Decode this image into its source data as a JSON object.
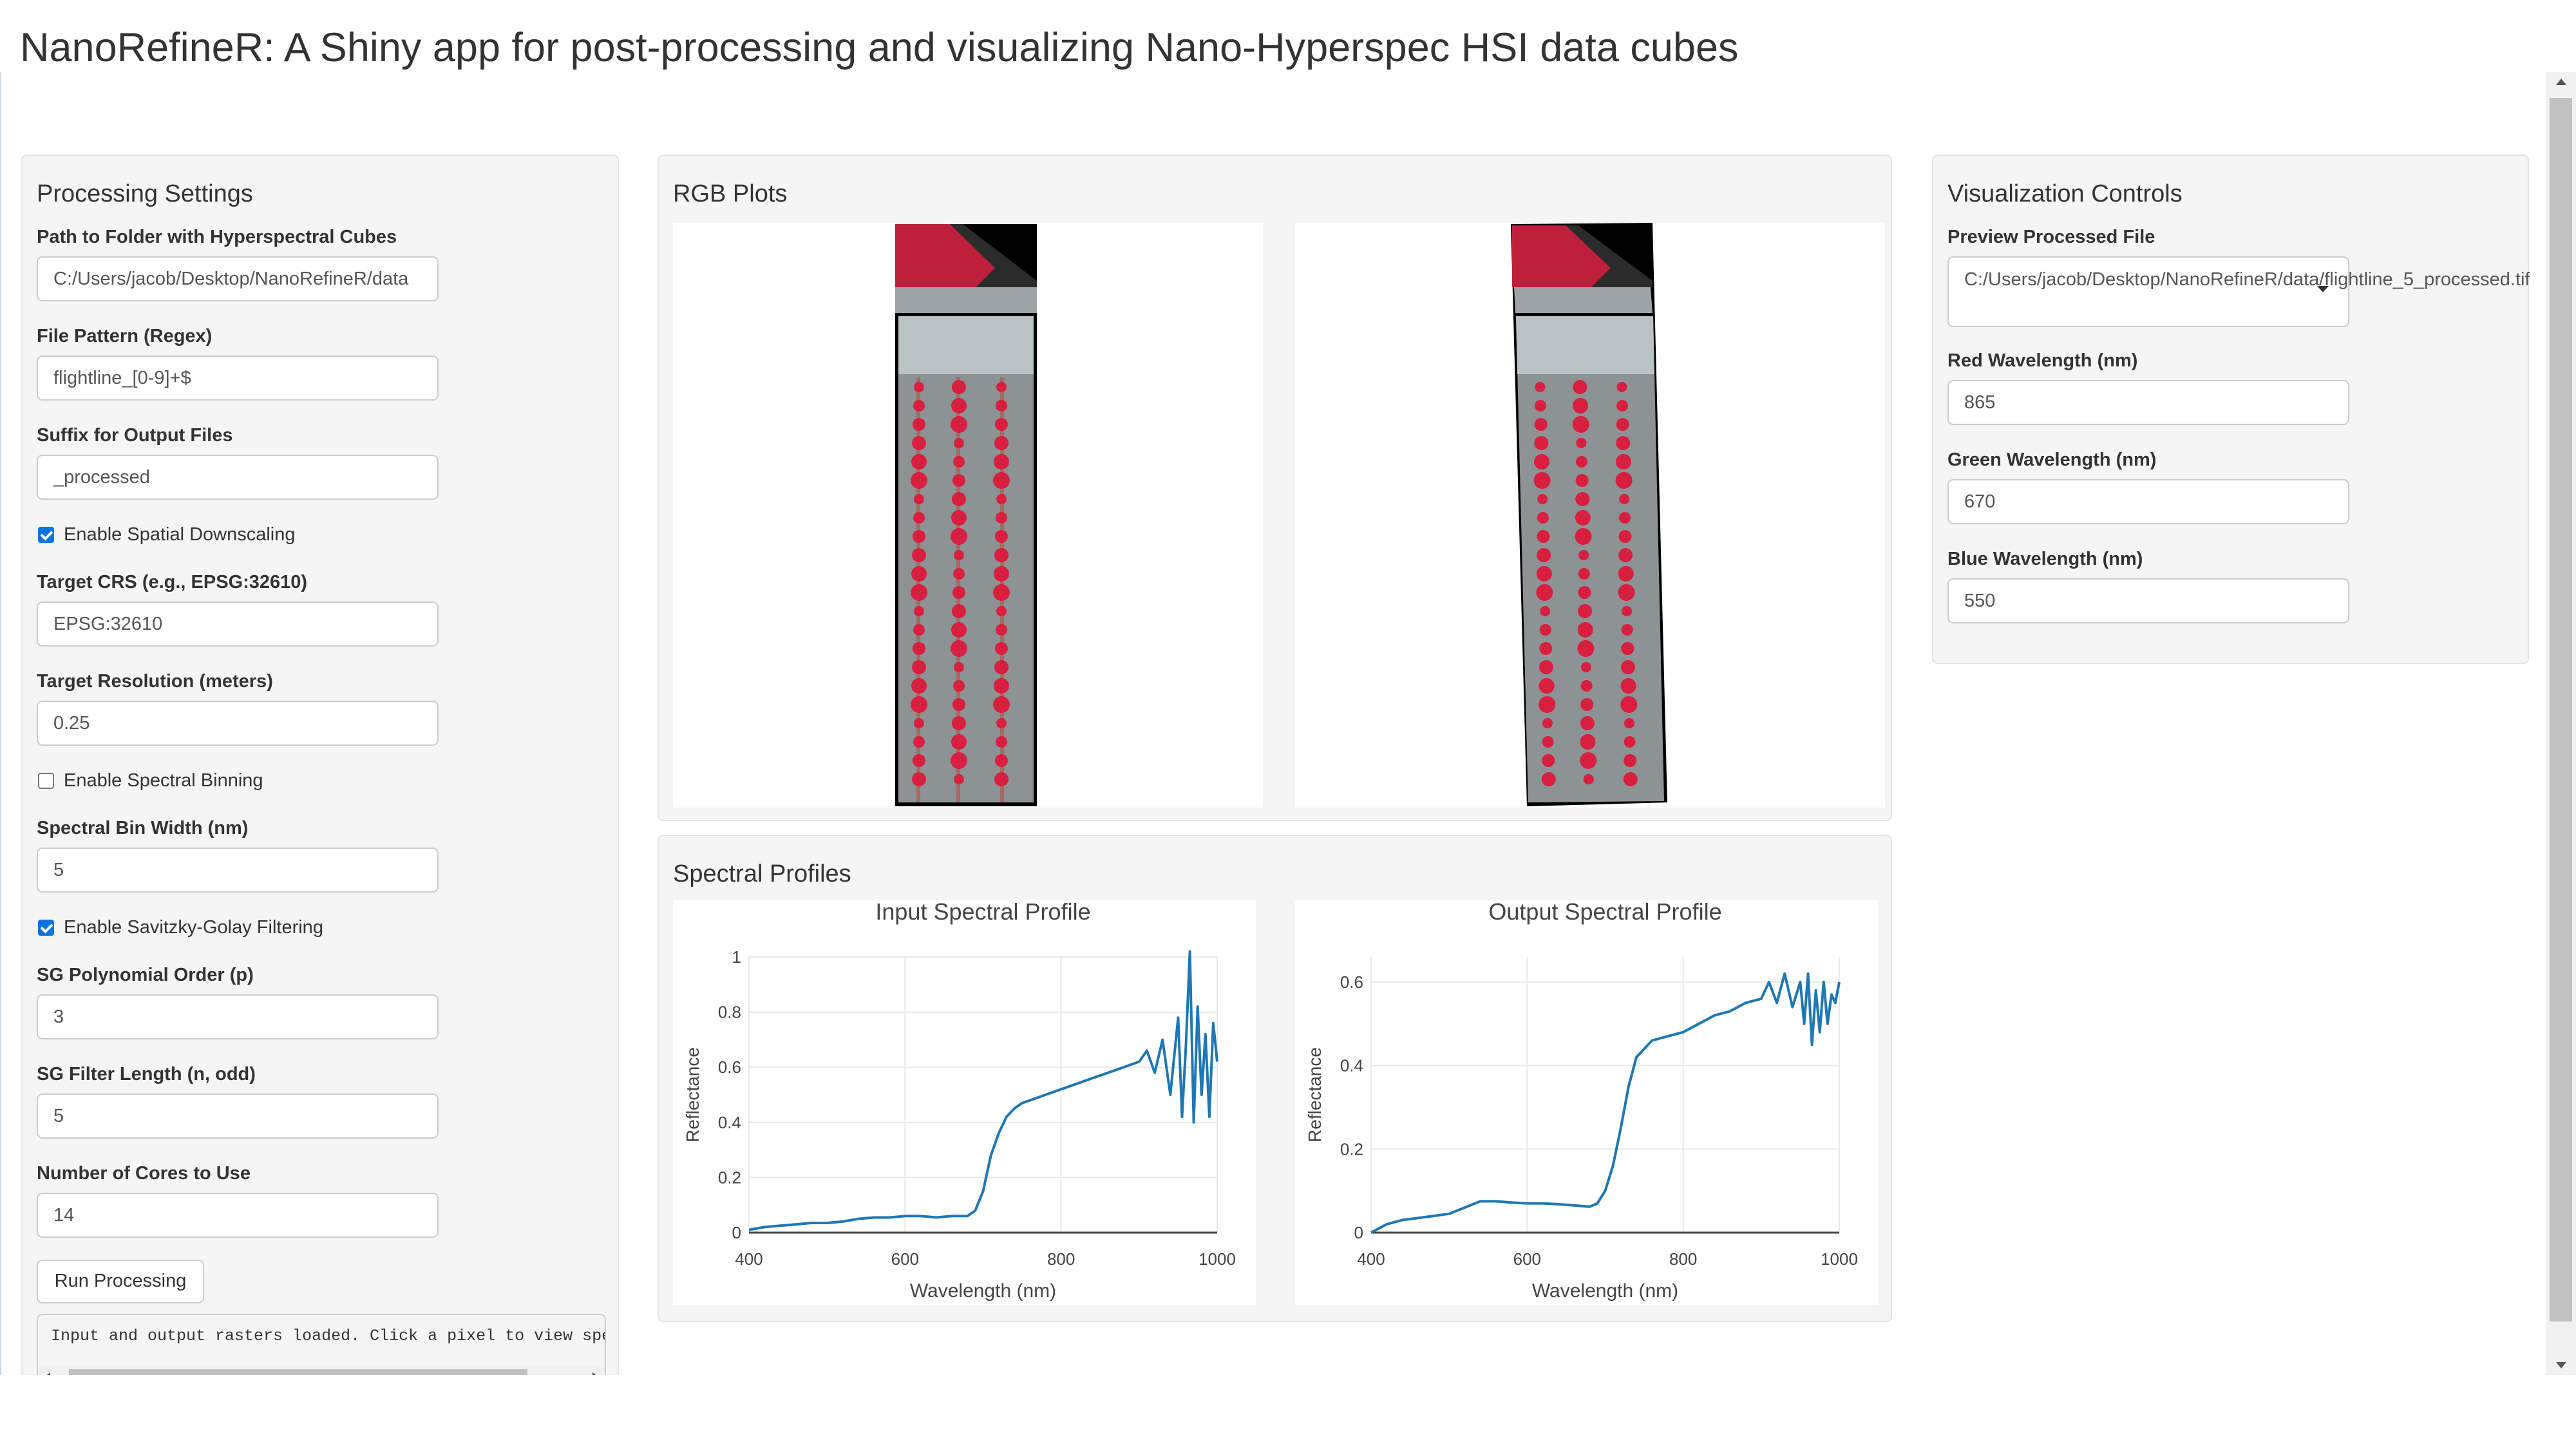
{
  "app": {
    "title": "NanoRefineR: A Shiny app for post-processing and visualizing Nano-Hyperspec HSI data cubes"
  },
  "processing": {
    "heading": "Processing Settings",
    "path_label": "Path to Folder with Hyperspectral Cubes",
    "path_value": "C:/Users/jacob/Desktop/NanoRefineR/data",
    "pattern_label": "File Pattern (Regex)",
    "pattern_value": "flightline_[0-9]+$",
    "suffix_label": "Suffix for Output Files",
    "suffix_value": "_processed",
    "downscale_label": "Enable Spatial Downscaling",
    "downscale_checked": true,
    "crs_label": "Target CRS (e.g., EPSG:32610)",
    "crs_value": "EPSG:32610",
    "resolution_label": "Target Resolution (meters)",
    "resolution_value": "0.25",
    "binning_label": "Enable Spectral Binning",
    "binning_checked": false,
    "binwidth_label": "Spectral Bin Width (nm)",
    "binwidth_value": "5",
    "sg_label": "Enable Savitzky-Golay Filtering",
    "sg_checked": true,
    "sg_order_label": "SG Polynomial Order (p)",
    "sg_order_value": "3",
    "sg_length_label": "SG Filter Length (n, odd)",
    "sg_length_value": "5",
    "cores_label": "Number of Cores to Use",
    "cores_value": "14",
    "run_button": "Run Processing",
    "console_text": "Input and output rasters loaded. Click a pixel to view spe"
  },
  "rgb": {
    "heading": "RGB Plots"
  },
  "spectral": {
    "heading": "Spectral Profiles"
  },
  "viz": {
    "heading": "Visualization Controls",
    "preview_label": "Preview Processed File",
    "preview_value": "C:/Users/jacob/Desktop/NanoRefineR/data/flightline_5_processed.tif",
    "red_label": "Red Wavelength (nm)",
    "red_value": "865",
    "green_label": "Green Wavelength (nm)",
    "green_value": "670",
    "blue_label": "Blue Wavelength (nm)",
    "blue_value": "550"
  },
  "colors": {
    "line": "#1f77b4",
    "rgb_red": "#d81f3f",
    "checkbox": "#0b74de"
  },
  "chart_data": [
    {
      "type": "line",
      "title": "Input Spectral Profile",
      "xlabel": "Wavelength (nm)",
      "ylabel": "Reflectance",
      "xlim": [
        400,
        1000
      ],
      "ylim": [
        0,
        1
      ],
      "xticks": [
        "400",
        "600",
        "800",
        "1000"
      ],
      "yticks": [
        "0",
        "0.2",
        "0.4",
        "0.6",
        "0.8",
        "1"
      ],
      "grid": true,
      "x": [
        400,
        420,
        440,
        460,
        480,
        500,
        520,
        540,
        560,
        580,
        600,
        620,
        640,
        660,
        680,
        690,
        700,
        710,
        720,
        730,
        740,
        750,
        760,
        780,
        800,
        820,
        840,
        860,
        880,
        900,
        910,
        920,
        930,
        940,
        950,
        955,
        960,
        965,
        970,
        975,
        980,
        985,
        990,
        995,
        1000
      ],
      "y": [
        0.01,
        0.02,
        0.025,
        0.03,
        0.035,
        0.035,
        0.04,
        0.05,
        0.055,
        0.055,
        0.06,
        0.06,
        0.055,
        0.06,
        0.06,
        0.08,
        0.15,
        0.28,
        0.36,
        0.42,
        0.45,
        0.47,
        0.48,
        0.5,
        0.52,
        0.54,
        0.56,
        0.58,
        0.6,
        0.62,
        0.66,
        0.58,
        0.7,
        0.5,
        0.78,
        0.42,
        0.68,
        1.02,
        0.4,
        0.82,
        0.5,
        0.72,
        0.42,
        0.76,
        0.62
      ]
    },
    {
      "type": "line",
      "title": "Output Spectral Profile",
      "xlabel": "Wavelength (nm)",
      "ylabel": "Reflectance",
      "xlim": [
        400,
        1000
      ],
      "ylim": [
        0,
        0.66
      ],
      "xticks": [
        "400",
        "600",
        "800",
        "1000"
      ],
      "yticks": [
        "0",
        "0.2",
        "0.4",
        "0.6"
      ],
      "grid": true,
      "x": [
        400,
        420,
        440,
        460,
        480,
        500,
        520,
        540,
        560,
        580,
        600,
        620,
        640,
        660,
        680,
        690,
        700,
        710,
        720,
        730,
        740,
        750,
        760,
        780,
        800,
        820,
        840,
        860,
        880,
        900,
        910,
        920,
        930,
        940,
        950,
        955,
        960,
        965,
        970,
        975,
        980,
        985,
        990,
        995,
        1000
      ],
      "y": [
        0.0,
        0.02,
        0.03,
        0.035,
        0.04,
        0.045,
        0.06,
        0.075,
        0.075,
        0.072,
        0.07,
        0.07,
        0.068,
        0.065,
        0.062,
        0.07,
        0.1,
        0.16,
        0.25,
        0.35,
        0.42,
        0.44,
        0.46,
        0.47,
        0.48,
        0.5,
        0.52,
        0.53,
        0.55,
        0.56,
        0.6,
        0.55,
        0.62,
        0.54,
        0.6,
        0.5,
        0.62,
        0.45,
        0.58,
        0.48,
        0.6,
        0.5,
        0.57,
        0.55,
        0.6
      ]
    }
  ]
}
